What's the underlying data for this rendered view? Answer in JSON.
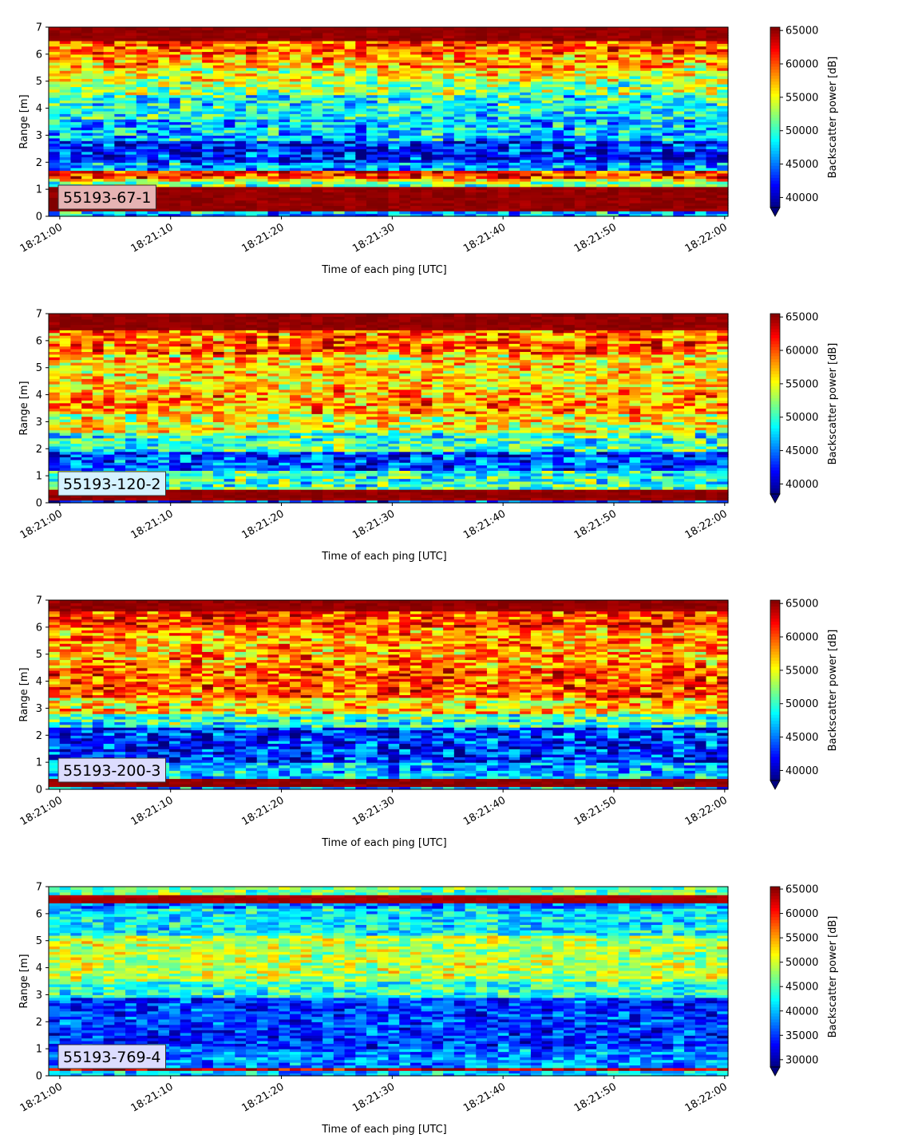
{
  "chart_data": [
    {
      "type": "heatmap",
      "label": "55193-67-1",
      "label_bg": "#e6b3b3",
      "xlabel": "Time of each ping [UTC]",
      "ylabel": "Range [m]",
      "xticks": [
        "18:21:00",
        "18:21:10",
        "18:21:20",
        "18:21:30",
        "18:21:40",
        "18:21:50",
        "18:22:00"
      ],
      "xlim_seconds": [
        -1,
        60.3
      ],
      "yticks": [
        0,
        1,
        2,
        3,
        4,
        5,
        6,
        7
      ],
      "ylim": [
        0,
        7
      ],
      "colorbar": {
        "label": "Backscatter power [dB]",
        "ticks": [
          40000,
          45000,
          50000,
          55000,
          60000,
          65000
        ],
        "range": [
          38500,
          65500
        ],
        "extend": "min"
      },
      "range_profile": [
        [
          0.0,
          0.25,
          47000
        ],
        [
          0.25,
          1.1,
          65000
        ],
        [
          1.1,
          1.3,
          52000
        ],
        [
          1.3,
          1.45,
          56000
        ],
        [
          1.45,
          1.75,
          61000
        ],
        [
          1.75,
          2.0,
          46000
        ],
        [
          2.0,
          2.8,
          42500
        ],
        [
          2.8,
          3.6,
          47000
        ],
        [
          3.6,
          4.5,
          49000
        ],
        [
          4.5,
          5.0,
          52000
        ],
        [
          5.0,
          5.5,
          55000
        ],
        [
          5.5,
          6.0,
          58000
        ],
        [
          6.0,
          6.5,
          60000
        ],
        [
          6.5,
          7.0,
          65000
        ]
      ]
    },
    {
      "type": "heatmap",
      "label": "55193-120-2",
      "label_bg": "#d4f2ff",
      "xlabel": "Time of each ping [UTC]",
      "ylabel": "Range [m]",
      "xticks": [
        "18:21:00",
        "18:21:10",
        "18:21:20",
        "18:21:30",
        "18:21:40",
        "18:21:50",
        "18:22:00"
      ],
      "xlim_seconds": [
        -1,
        60.3
      ],
      "yticks": [
        0,
        1,
        2,
        3,
        4,
        5,
        6,
        7
      ],
      "ylim": [
        0,
        7
      ],
      "colorbar": {
        "label": "Backscatter power [dB]",
        "ticks": [
          40000,
          45000,
          50000,
          55000,
          60000,
          65000
        ],
        "range": [
          38500,
          65500
        ],
        "extend": "min"
      },
      "range_profile": [
        [
          0.0,
          0.15,
          44000
        ],
        [
          0.15,
          0.55,
          65000
        ],
        [
          0.55,
          1.2,
          50000
        ],
        [
          1.2,
          1.9,
          43500
        ],
        [
          1.9,
          2.6,
          50000
        ],
        [
          2.6,
          3.3,
          55000
        ],
        [
          3.3,
          4.2,
          58000
        ],
        [
          4.2,
          5.5,
          56000
        ],
        [
          5.5,
          6.4,
          59000
        ],
        [
          6.4,
          7.0,
          65000
        ]
      ]
    },
    {
      "type": "heatmap",
      "label": "55193-200-3",
      "label_bg": "#dcdcff",
      "xlabel": "Time of each ping [UTC]",
      "ylabel": "Range [m]",
      "xticks": [
        "18:21:00",
        "18:21:10",
        "18:21:20",
        "18:21:30",
        "18:21:40",
        "18:21:50",
        "18:22:00"
      ],
      "xlim_seconds": [
        -1,
        60.3
      ],
      "yticks": [
        0,
        1,
        2,
        3,
        4,
        5,
        6,
        7
      ],
      "ylim": [
        0,
        7
      ],
      "colorbar": {
        "label": "Backscatter power [dB]",
        "ticks": [
          40000,
          45000,
          50000,
          55000,
          60000,
          65000
        ],
        "range": [
          38500,
          65500
        ],
        "extend": "min"
      },
      "range_profile": [
        [
          0.0,
          0.15,
          46000
        ],
        [
          0.15,
          0.4,
          65000
        ],
        [
          0.4,
          1.0,
          47000
        ],
        [
          1.0,
          2.3,
          43000
        ],
        [
          2.3,
          2.8,
          50000
        ],
        [
          2.8,
          3.4,
          56000
        ],
        [
          3.4,
          4.5,
          60000
        ],
        [
          4.5,
          6.0,
          58000
        ],
        [
          6.0,
          6.6,
          61000
        ],
        [
          6.6,
          7.0,
          65000
        ]
      ]
    },
    {
      "type": "heatmap",
      "label": "55193-769-4",
      "label_bg": "#dcdcff",
      "xlabel": "Time of each ping [UTC]",
      "ylabel": "Range [m]",
      "xticks": [
        "18:21:00",
        "18:21:10",
        "18:21:20",
        "18:21:30",
        "18:21:40",
        "18:21:50",
        "18:22:00"
      ],
      "xlim_seconds": [
        -1,
        60.3
      ],
      "yticks": [
        0,
        1,
        2,
        3,
        4,
        5,
        6,
        7
      ],
      "ylim": [
        0,
        7
      ],
      "colorbar": {
        "label": "Backscatter power [dB]",
        "ticks": [
          30000,
          35000,
          40000,
          45000,
          50000,
          55000,
          60000,
          65000
        ],
        "range": [
          28500,
          65500
        ],
        "extend": "min"
      },
      "range_profile": [
        [
          0.0,
          0.2,
          40000
        ],
        [
          0.2,
          0.35,
          63000
        ],
        [
          0.35,
          1.0,
          38000
        ],
        [
          1.0,
          2.9,
          35000
        ],
        [
          2.9,
          3.5,
          44000
        ],
        [
          3.5,
          5.2,
          49000
        ],
        [
          5.2,
          6.2,
          42000
        ],
        [
          6.2,
          6.4,
          38000
        ],
        [
          6.4,
          6.65,
          64000
        ],
        [
          6.65,
          7.0,
          46000
        ]
      ]
    }
  ]
}
